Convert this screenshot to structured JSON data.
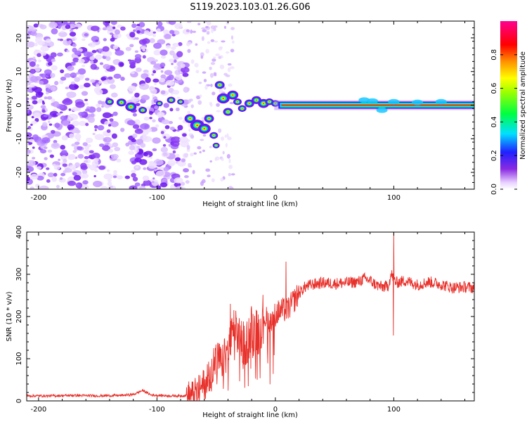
{
  "title": "S119.2023.103.01.26.G06",
  "colors": {
    "snr_line": "#e8302a",
    "axis": "#000000"
  },
  "chart_data": [
    {
      "type": "heatmap",
      "xlabel": "Height of straight line (km)",
      "ylabel": "Frequency (Hz)",
      "xlim": [
        -210,
        168
      ],
      "ylim": [
        -25,
        25
      ],
      "xticks": [
        -200,
        -100,
        0,
        100
      ],
      "yticks": [
        -20,
        -10,
        0,
        10,
        20
      ],
      "colorbar": {
        "label": "Normalized spectral amplitude",
        "range": [
          0,
          1
        ],
        "ticks": [
          0.0,
          0.2,
          0.4,
          0.6,
          0.8
        ],
        "colormap": "rainbow (white-purple-blue-cyan-green-yellow-red-magenta)"
      },
      "features": {
        "noise_region_km": [
          -210,
          -75
        ],
        "signal_start_km": -75,
        "strong_line_start_km": 5,
        "strong_line_freq_hz": 0
      }
    },
    {
      "type": "line",
      "xlabel": "Height of straight line (km)",
      "ylabel": "SNR (10 * v/v)",
      "xlim": [
        -210,
        168
      ],
      "ylim": [
        0,
        400
      ],
      "xticks": [
        -200,
        -100,
        0,
        100
      ],
      "yticks": [
        0,
        100,
        200,
        300,
        400
      ],
      "series": [
        {
          "name": "SNR",
          "x": [
            -210,
            -190,
            -170,
            -150,
            -130,
            -120,
            -112,
            -105,
            -90,
            -80,
            -70,
            -65,
            -60,
            -55,
            -50,
            -45,
            -40,
            -35,
            -30,
            -25,
            -20,
            -15,
            -10,
            -5,
            0,
            5,
            10,
            15,
            20,
            25,
            30,
            40,
            50,
            60,
            70,
            75,
            80,
            85,
            90,
            95,
            98,
            100,
            102,
            105,
            110,
            120,
            130,
            140,
            150,
            160,
            168
          ],
          "values": [
            12,
            12,
            13,
            12,
            13,
            15,
            25,
            14,
            12,
            12,
            14,
            22,
            40,
            70,
            100,
            90,
            120,
            170,
            150,
            130,
            180,
            160,
            200,
            190,
            205,
            215,
            215,
            235,
            255,
            270,
            275,
            280,
            278,
            280,
            282,
            290,
            285,
            275,
            270,
            272,
            300,
            290,
            280,
            282,
            285,
            275,
            282,
            276,
            268,
            270,
            268
          ]
        }
      ],
      "annotations": {
        "spike_x_km": 100,
        "spike_max": 400,
        "spike_min": 155
      }
    }
  ]
}
